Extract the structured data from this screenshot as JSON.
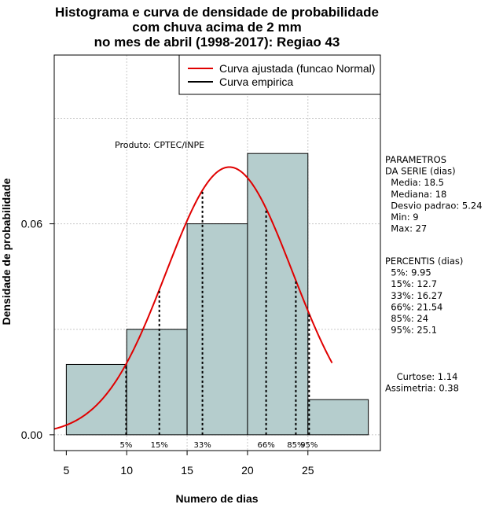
{
  "chart_data": {
    "type": "histogram",
    "title": [
      "Histograma e curva de densidade de probabilidade",
      "com chuva acima de 2 mm",
      "no mes de abril (1998-2017): Regiao 43"
    ],
    "xlabel": "Numero de dias",
    "ylabel": "Densidade de probabilidade",
    "xlim": [
      4,
      31
    ],
    "ylim": [
      -0.0045,
      0.108
    ],
    "x_ticks": [
      5,
      10,
      15,
      20,
      25
    ],
    "y_ticks": [
      0.0,
      0.06
    ],
    "y_tick_labels": [
      "0.00",
      "0.06"
    ],
    "bins": [
      {
        "from": 5,
        "to": 10,
        "density": 0.02
      },
      {
        "from": 10,
        "to": 15,
        "density": 0.03
      },
      {
        "from": 15,
        "to": 20,
        "density": 0.06
      },
      {
        "from": 20,
        "to": 25,
        "density": 0.08
      },
      {
        "from": 25,
        "to": 30,
        "density": 0.01
      }
    ],
    "bar_color": "#b5cdcd",
    "normal_fit": {
      "mean": 18.5,
      "sd": 5.24,
      "x_from": 4,
      "x_to": 27,
      "color": "#e00000"
    },
    "percentile_lines": [
      {
        "x": 9.95,
        "label": "5%"
      },
      {
        "x": 12.7,
        "label": "15%"
      },
      {
        "x": 16.27,
        "label": "33%"
      },
      {
        "x": 21.54,
        "label": "66%"
      },
      {
        "x": 24,
        "label": "85%"
      },
      {
        "x": 25.1,
        "label": "95%"
      }
    ],
    "legend": [
      {
        "label": "Curva ajustada (funcao Normal)",
        "color": "#e00000"
      },
      {
        "label": "Curva empirica",
        "color": "#000000"
      }
    ],
    "legend_position": "top-right",
    "product_note": "Produto: CPTEC/INPE"
  },
  "side_panel": {
    "parametros": [
      "PARAMETROS",
      "DA SERIE (dias)",
      "  Media: 18.5",
      "  Mediana: 18",
      "  Desvio padrao: 5.24",
      "  Min: 9",
      "  Max: 27"
    ],
    "percentis": [
      "PERCENTIS (dias)",
      "  5%: 9.95",
      "  15%: 12.7",
      "  33%: 16.27",
      "  66%: 21.54",
      "  85%: 24",
      "  95%: 25.1"
    ],
    "stats": [
      "    Curtose: 1.14",
      "Assimetria: 0.38"
    ]
  }
}
